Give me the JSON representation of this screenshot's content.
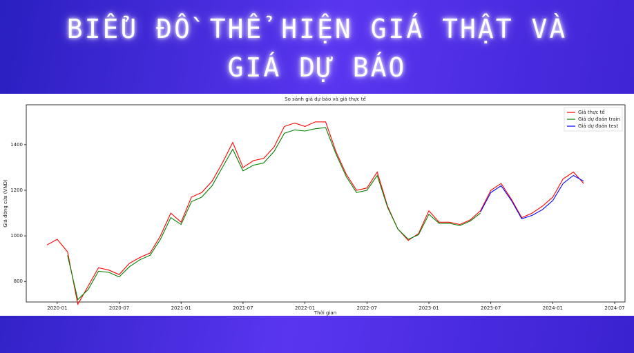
{
  "header": {
    "title": "BIỂU ĐỒ THỂ HIỆN GIÁ THẬT VÀ GIÁ DỰ BÁO"
  },
  "chart_data": {
    "type": "line",
    "title": "So sánh giá dự báo và giá thực tế",
    "xlabel": "Thời gian",
    "ylabel": "Giá đóng cửa (VND)",
    "x": [
      "2019-12",
      "2020-01",
      "2020-02",
      "2020-03",
      "2020-04",
      "2020-05",
      "2020-06",
      "2020-07",
      "2020-08",
      "2020-09",
      "2020-10",
      "2020-11",
      "2020-12",
      "2021-01",
      "2021-02",
      "2021-03",
      "2021-04",
      "2021-05",
      "2021-06",
      "2021-07",
      "2021-08",
      "2021-09",
      "2021-10",
      "2021-11",
      "2021-12",
      "2022-01",
      "2022-02",
      "2022-03",
      "2022-04",
      "2022-05",
      "2022-06",
      "2022-07",
      "2022-08",
      "2022-09",
      "2022-10",
      "2022-11",
      "2022-12",
      "2023-01",
      "2023-02",
      "2023-03",
      "2023-04",
      "2023-05",
      "2023-06",
      "2023-07",
      "2023-08",
      "2023-09",
      "2023-10",
      "2023-11",
      "2023-12",
      "2024-01",
      "2024-02",
      "2024-03",
      "2024-04"
    ],
    "series": [
      {
        "name": "Giá thực tế",
        "color": "#ff0000",
        "values": [
          960,
          985,
          930,
          700,
          780,
          860,
          850,
          830,
          880,
          905,
          925,
          1000,
          1100,
          1060,
          1170,
          1190,
          1240,
          1320,
          1410,
          1300,
          1330,
          1340,
          1390,
          1480,
          1495,
          1480,
          1500,
          1500,
          1370,
          1270,
          1200,
          1210,
          1280,
          1130,
          1030,
          980,
          1010,
          1110,
          1060,
          1060,
          1050,
          1070,
          1110,
          1200,
          1230,
          1160,
          1080,
          1100,
          1130,
          1170,
          1250,
          1280,
          1230
        ]
      },
      {
        "name": "Giá dự đoán train",
        "color": "#008000",
        "values": [
          null,
          null,
          915,
          720,
          765,
          845,
          840,
          820,
          865,
          895,
          915,
          985,
          1080,
          1050,
          1150,
          1170,
          1220,
          1300,
          1380,
          1285,
          1310,
          1320,
          1370,
          1450,
          1465,
          1460,
          1470,
          1475,
          1360,
          1260,
          1190,
          1200,
          1265,
          1125,
          1030,
          985,
          1005,
          1095,
          1055,
          1055,
          1045,
          1065,
          1100,
          null,
          null,
          null,
          null,
          null,
          null,
          null,
          null,
          null,
          null
        ]
      },
      {
        "name": "Giá dự đoán test",
        "color": "#0000ff",
        "values": [
          null,
          null,
          null,
          null,
          null,
          null,
          null,
          null,
          null,
          null,
          null,
          null,
          null,
          null,
          null,
          null,
          null,
          null,
          null,
          null,
          null,
          null,
          null,
          null,
          null,
          null,
          null,
          null,
          null,
          null,
          null,
          null,
          null,
          null,
          null,
          null,
          null,
          null,
          null,
          null,
          null,
          null,
          1105,
          1190,
          1220,
          1155,
          1075,
          1090,
          1115,
          1155,
          1230,
          1265,
          1240
        ]
      }
    ],
    "xlim": [
      "2019-10",
      "2024-08"
    ],
    "xticks": [
      "2020-01",
      "2020-07",
      "2021-01",
      "2021-07",
      "2022-01",
      "2022-07",
      "2023-01",
      "2023-07",
      "2024-01",
      "2024-07"
    ],
    "ylim": [
      710,
      1575
    ],
    "yticks": [
      800,
      1000,
      1200,
      1400
    ],
    "legend": "upper right"
  }
}
